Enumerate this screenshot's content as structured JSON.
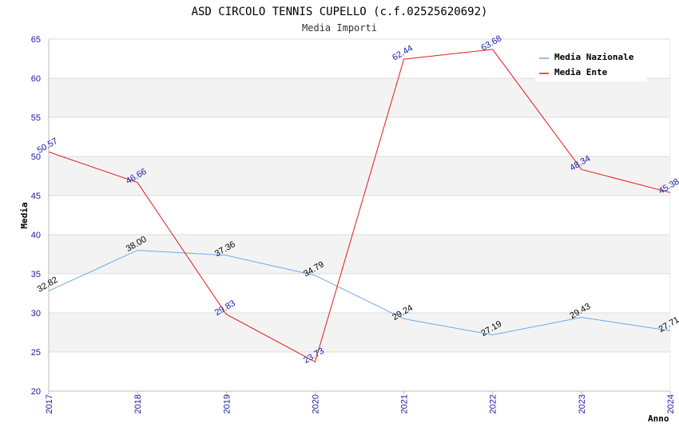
{
  "chart_data": {
    "type": "line",
    "title": "ASD CIRCOLO TENNIS CUPELLO (c.f.02525620692)",
    "subtitle": "Media Importi",
    "xlabel": "Anno",
    "ylabel": "Media",
    "ylim": [
      20,
      65
    ],
    "yticks": [
      20,
      25,
      30,
      35,
      40,
      45,
      50,
      55,
      60,
      65
    ],
    "categories": [
      "2017",
      "2018",
      "2019",
      "2020",
      "2021",
      "2022",
      "2023",
      "2024"
    ],
    "grid": true,
    "legend_position": "top-right",
    "series": [
      {
        "name": "Media Nazionale",
        "color": "#6aaae8",
        "values": [
          32.82,
          38.0,
          37.36,
          34.79,
          29.24,
          27.19,
          29.43,
          27.71
        ],
        "labels": [
          "32.82",
          "38.00",
          "37.36",
          "34.79",
          "29.24",
          "27.19",
          "29.43",
          "27.71"
        ]
      },
      {
        "name": "Media Ente",
        "color": "#e31a1c",
        "values": [
          50.57,
          46.66,
          29.83,
          23.73,
          62.44,
          63.68,
          48.34,
          45.38
        ],
        "labels": [
          "50.57",
          "46.66",
          "29.83",
          "23.73",
          "62.44",
          "63.68",
          "48.34",
          "45.38"
        ]
      }
    ]
  }
}
